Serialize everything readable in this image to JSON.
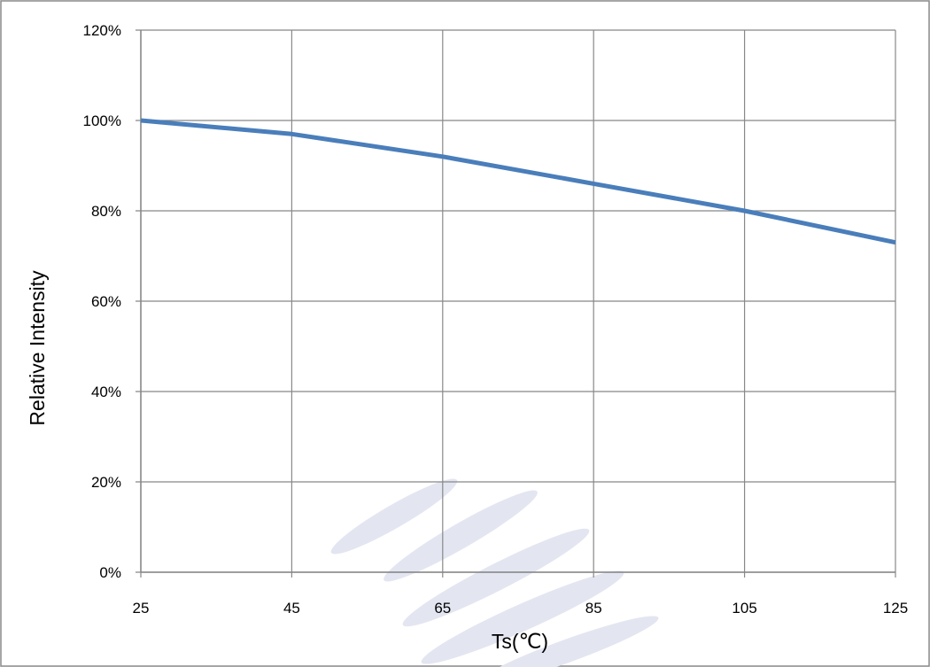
{
  "chart_data": {
    "type": "line",
    "title": "",
    "xlabel": "Ts(℃)",
    "ylabel": "Relative Intensity",
    "x": [
      25,
      45,
      65,
      85,
      105,
      125
    ],
    "series": [
      {
        "values": [
          1.0,
          0.97,
          0.92,
          0.86,
          0.8,
          0.73
        ]
      }
    ],
    "xlim": [
      25,
      125
    ],
    "ylim": [
      0,
      1.2
    ],
    "x_ticks": [
      "25",
      "45",
      "65",
      "85",
      "105",
      "125"
    ],
    "y_ticks": [
      "0%",
      "20%",
      "40%",
      "60%",
      "80%",
      "100%",
      "120%"
    ],
    "grid": true,
    "legend": "none",
    "line_color": "#4a7ebb",
    "grid_color": "#888888",
    "watermark_color": "#e3e6f1"
  }
}
